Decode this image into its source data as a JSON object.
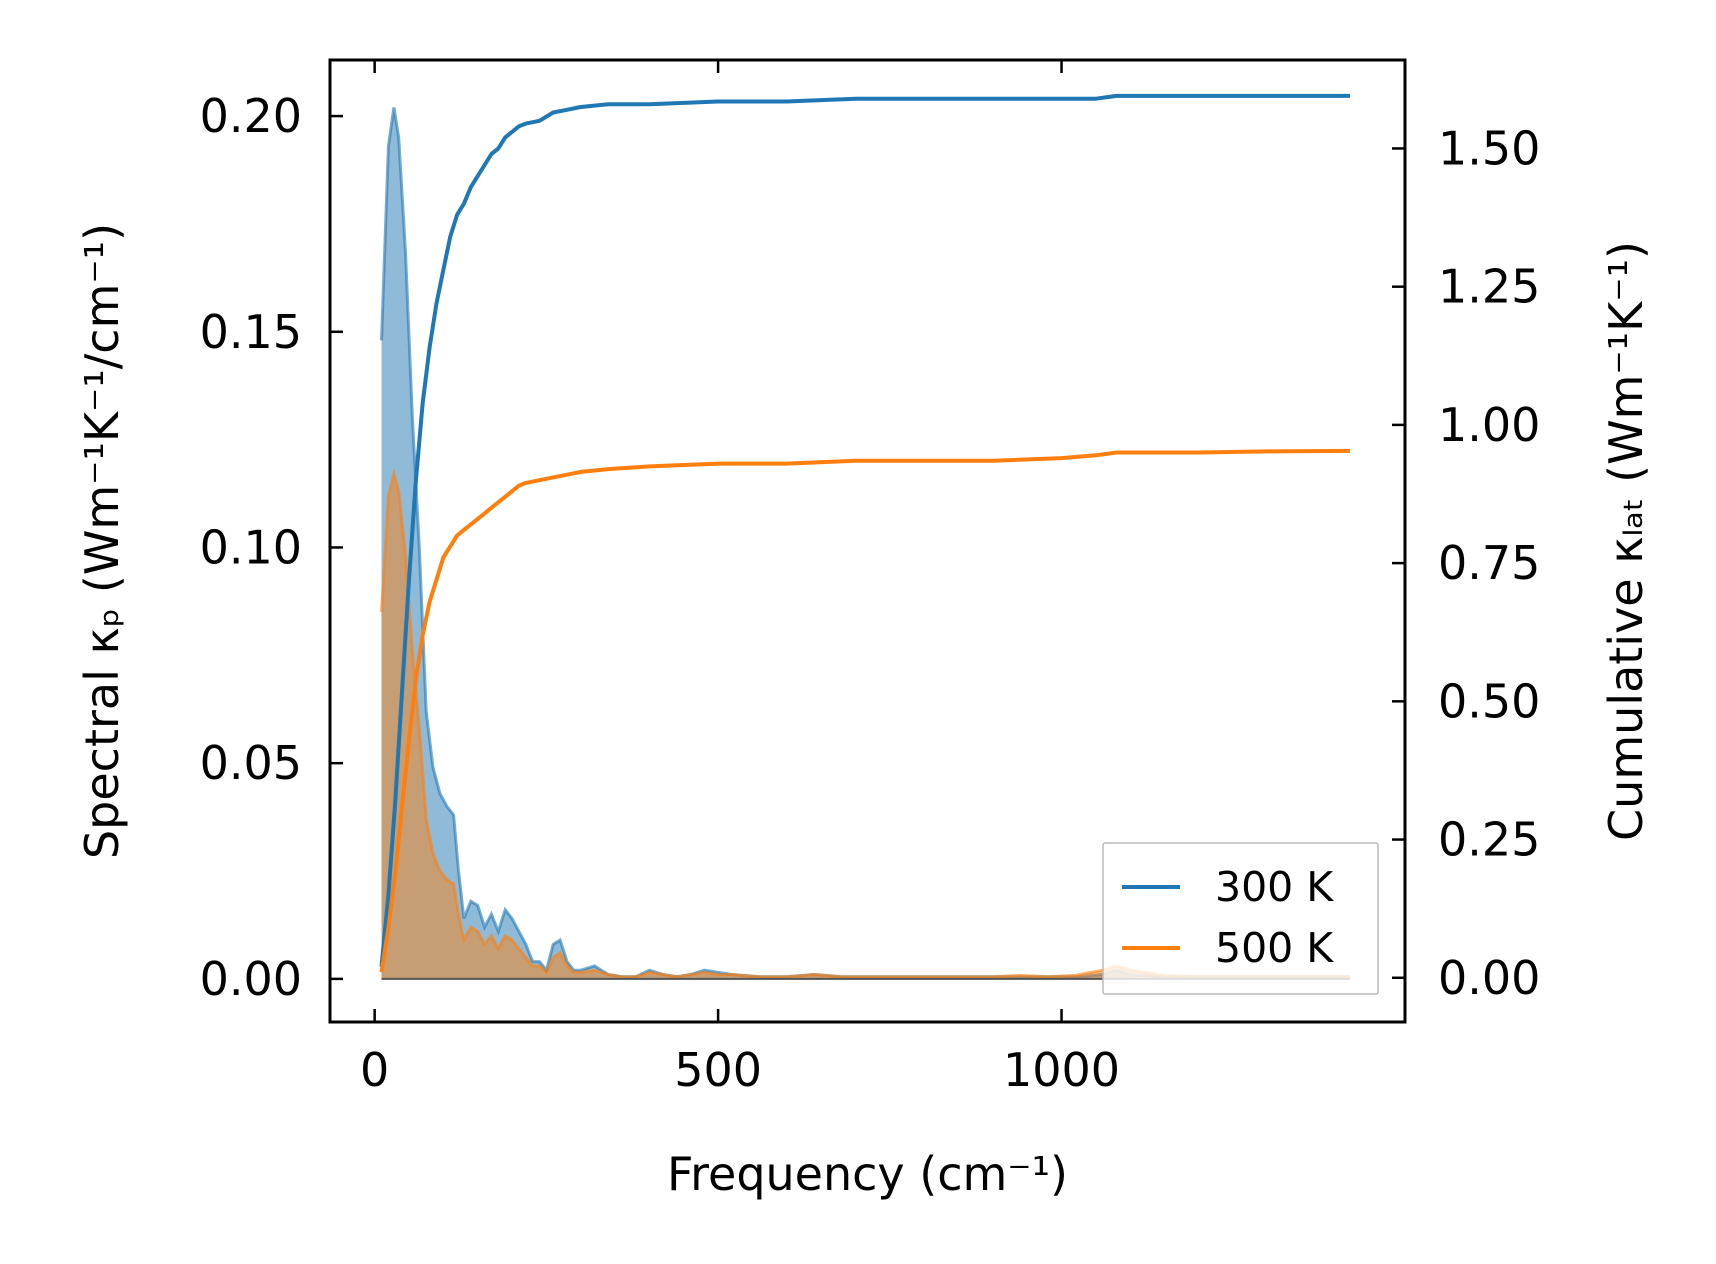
{
  "chart_data": {
    "type": "line",
    "xlabel": "Frequency (cm⁻¹)",
    "ylabel_left": "Spectral κₚ (Wm⁻¹K⁻¹/cm⁻¹)",
    "ylabel_right": "Cumulative κₗₐₜ (Wm⁻¹K⁻¹)",
    "xlim": [
      -65,
      1500
    ],
    "ylim_left": [
      -0.01,
      0.213
    ],
    "ylim_right": [
      -0.08,
      1.66
    ],
    "x_ticks": [
      0,
      500,
      1000
    ],
    "x_tick_labels": [
      "0",
      "500",
      "1000"
    ],
    "y_left_ticks": [
      0,
      0.05,
      0.1,
      0.15,
      0.2
    ],
    "y_left_tick_labels": [
      "0.00",
      "0.05",
      "0.10",
      "0.15",
      "0.20"
    ],
    "y_right_ticks": [
      0,
      0.25,
      0.5,
      0.75,
      1.0,
      1.25,
      1.5
    ],
    "y_right_tick_labels": [
      "0.00",
      "0.25",
      "0.50",
      "0.75",
      "1.00",
      "1.25",
      "1.50"
    ],
    "grid": false,
    "legend": {
      "position": "bottom-right",
      "entries": [
        "300 K",
        "500 K"
      ]
    },
    "colors": {
      "300K": "#1f77b4",
      "500K": "#ff7f0e",
      "fill_overlap": "#b88d6b"
    },
    "spectral": {
      "300K": {
        "x": [
          10,
          20,
          28,
          35,
          45,
          55,
          65,
          75,
          85,
          95,
          105,
          115,
          122,
          130,
          140,
          150,
          160,
          170,
          180,
          190,
          200,
          210,
          220,
          230,
          240,
          250,
          260,
          270,
          280,
          290,
          300,
          320,
          340,
          360,
          380,
          400,
          420,
          440,
          460,
          480,
          500,
          520,
          560,
          600,
          640,
          680,
          720,
          780,
          840,
          900,
          940,
          980,
          1020,
          1060,
          1080,
          1100,
          1150,
          1200,
          1300,
          1420
        ],
        "values": [
          0.148,
          0.193,
          0.202,
          0.195,
          0.168,
          0.13,
          0.1,
          0.062,
          0.049,
          0.043,
          0.04,
          0.038,
          0.025,
          0.014,
          0.018,
          0.017,
          0.012,
          0.015,
          0.011,
          0.016,
          0.014,
          0.011,
          0.008,
          0.004,
          0.004,
          0.002,
          0.008,
          0.009,
          0.004,
          0.002,
          0.002,
          0.003,
          0.001,
          0.0005,
          0.0005,
          0.002,
          0.001,
          0.0005,
          0.001,
          0.002,
          0.0015,
          0.001,
          0.0005,
          0.0005,
          0.001,
          0.0005,
          0.0005,
          0.0005,
          0.0005,
          0.0005,
          0.0005,
          0.0005,
          0.0005,
          0.001,
          0.002,
          0.001,
          0.0005,
          0.0005,
          0.0005,
          0.0005
        ]
      },
      "500K": {
        "x": [
          10,
          20,
          28,
          35,
          45,
          55,
          65,
          75,
          85,
          95,
          105,
          115,
          122,
          130,
          140,
          150,
          160,
          170,
          180,
          190,
          200,
          210,
          220,
          230,
          240,
          250,
          260,
          270,
          280,
          290,
          300,
          320,
          340,
          360,
          380,
          400,
          420,
          440,
          460,
          480,
          500,
          520,
          560,
          600,
          640,
          680,
          720,
          780,
          840,
          900,
          940,
          980,
          1020,
          1060,
          1080,
          1100,
          1150,
          1200,
          1300,
          1420
        ],
        "values": [
          0.085,
          0.112,
          0.117,
          0.113,
          0.098,
          0.076,
          0.058,
          0.037,
          0.029,
          0.025,
          0.023,
          0.022,
          0.015,
          0.009,
          0.012,
          0.011,
          0.008,
          0.01,
          0.007,
          0.01,
          0.009,
          0.007,
          0.005,
          0.003,
          0.003,
          0.0015,
          0.005,
          0.006,
          0.003,
          0.0015,
          0.0015,
          0.002,
          0.001,
          0.0005,
          0.0005,
          0.0015,
          0.001,
          0.0005,
          0.001,
          0.0015,
          0.001,
          0.001,
          0.0005,
          0.0005,
          0.001,
          0.0005,
          0.0005,
          0.0005,
          0.0005,
          0.0005,
          0.0008,
          0.0005,
          0.0008,
          0.002,
          0.003,
          0.002,
          0.0008,
          0.0005,
          0.0005,
          0.0005
        ]
      }
    },
    "cumulative": {
      "300K": {
        "x": [
          10,
          20,
          30,
          40,
          50,
          60,
          70,
          80,
          90,
          100,
          110,
          120,
          130,
          140,
          150,
          160,
          170,
          180,
          190,
          200,
          210,
          220,
          240,
          260,
          280,
          300,
          340,
          400,
          500,
          600,
          700,
          800,
          900,
          1000,
          1050,
          1080,
          1200,
          1300,
          1420
        ],
        "values": [
          0.02,
          0.15,
          0.32,
          0.52,
          0.72,
          0.9,
          1.04,
          1.14,
          1.22,
          1.28,
          1.34,
          1.38,
          1.4,
          1.43,
          1.45,
          1.47,
          1.49,
          1.5,
          1.52,
          1.53,
          1.54,
          1.545,
          1.55,
          1.565,
          1.57,
          1.575,
          1.58,
          1.58,
          1.585,
          1.585,
          1.59,
          1.59,
          1.59,
          1.59,
          1.59,
          1.595,
          1.595,
          1.595,
          1.595
        ]
      },
      "500K": {
        "x": [
          10,
          20,
          30,
          40,
          50,
          60,
          70,
          80,
          90,
          100,
          110,
          120,
          130,
          140,
          150,
          160,
          170,
          180,
          190,
          200,
          210,
          220,
          240,
          260,
          280,
          300,
          340,
          400,
          500,
          600,
          700,
          800,
          900,
          1000,
          1050,
          1080,
          1200,
          1300,
          1420
        ],
        "values": [
          0.01,
          0.09,
          0.19,
          0.31,
          0.43,
          0.54,
          0.62,
          0.68,
          0.72,
          0.76,
          0.78,
          0.8,
          0.81,
          0.82,
          0.83,
          0.84,
          0.85,
          0.86,
          0.87,
          0.88,
          0.89,
          0.895,
          0.9,
          0.905,
          0.91,
          0.915,
          0.92,
          0.925,
          0.93,
          0.93,
          0.935,
          0.935,
          0.935,
          0.94,
          0.945,
          0.95,
          0.95,
          0.952,
          0.953
        ]
      }
    }
  }
}
